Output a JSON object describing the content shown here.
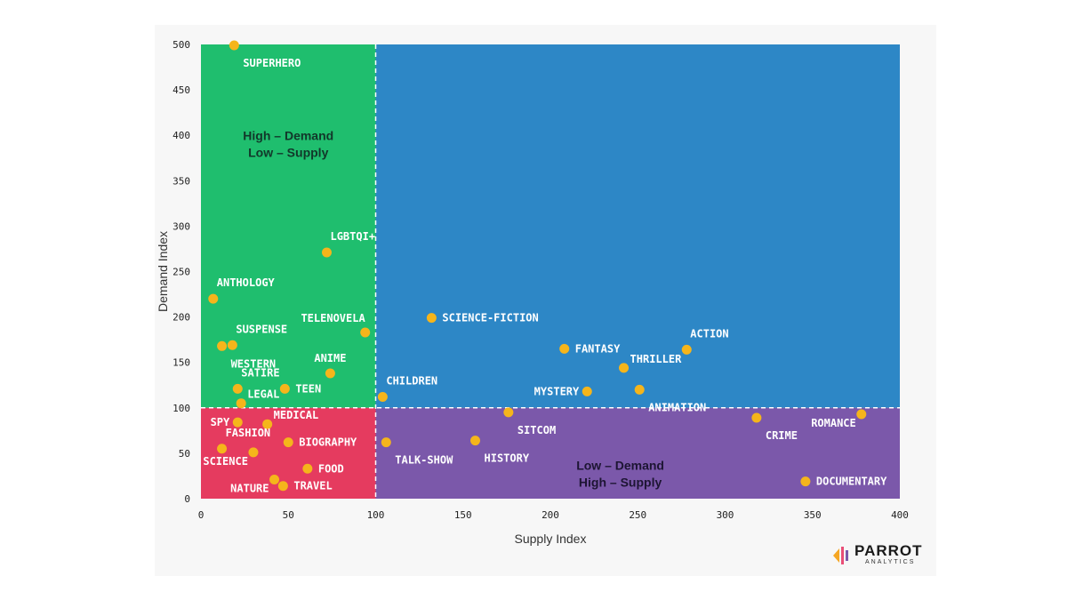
{
  "chart_data": {
    "type": "scatter",
    "xlabel": "Supply Index",
    "ylabel": "Demand Index",
    "xlim": [
      0,
      400
    ],
    "ylim": [
      0,
      500
    ],
    "xticks": [
      "0",
      "50",
      "100",
      "150",
      "200",
      "250",
      "300",
      "350",
      "400"
    ],
    "yticks": [
      "0",
      "50",
      "100",
      "150",
      "200",
      "250",
      "300",
      "350",
      "400",
      "450",
      "500"
    ],
    "threshold_x": 100,
    "threshold_y": 100,
    "zones": [
      {
        "name": "high-demand-low-supply",
        "label_lines": [
          "High – Demand",
          "Low – Supply"
        ],
        "color": "#1fbe6e",
        "text_color": "#12372a"
      },
      {
        "name": "high-demand-high-supply",
        "label_lines": [],
        "color": "#2d87c6",
        "text_color": "#ffffff"
      },
      {
        "name": "low-demand-low-supply",
        "label_lines": [],
        "color": "#e53b5f",
        "text_color": "#ffffff"
      },
      {
        "name": "low-demand-high-supply",
        "label_lines": [
          "Low – Demand",
          "High – Supply"
        ],
        "color": "#7b58aa",
        "text_color": "#1d1533"
      }
    ],
    "point_color": "#f5b51b",
    "points": [
      {
        "label": "SUPERHERO",
        "x": 19,
        "y": 499,
        "anchor": "below-right"
      },
      {
        "label": "LGBTQI+",
        "x": 72,
        "y": 271,
        "anchor": "above-right"
      },
      {
        "label": "ANTHOLOGY",
        "x": 7,
        "y": 220,
        "anchor": "above-right"
      },
      {
        "label": "TELENOVELA",
        "x": 94,
        "y": 183,
        "anchor": "above-left"
      },
      {
        "label": "SUSPENSE",
        "x": 18,
        "y": 169,
        "anchor": "above-right"
      },
      {
        "label": "WESTERN",
        "x": 12,
        "y": 168,
        "anchor": "below-right"
      },
      {
        "label": "ANIME",
        "x": 74,
        "y": 138,
        "anchor": "above"
      },
      {
        "label": "SATIRE",
        "x": 21,
        "y": 121,
        "anchor": "above-right"
      },
      {
        "label": "TEEN",
        "x": 48,
        "y": 121,
        "anchor": "right"
      },
      {
        "label": "LEGAL",
        "x": 23,
        "y": 105,
        "anchor": "upper-right"
      },
      {
        "label": "CHILDREN",
        "x": 104,
        "y": 112,
        "anchor": "above-right"
      },
      {
        "label": "SCIENCE-FICTION",
        "x": 132,
        "y": 199,
        "anchor": "right"
      },
      {
        "label": "FANTASY",
        "x": 208,
        "y": 165,
        "anchor": "right"
      },
      {
        "label": "ACTION",
        "x": 278,
        "y": 164,
        "anchor": "above-right"
      },
      {
        "label": "THRILLER",
        "x": 242,
        "y": 144,
        "anchor": "upper-right"
      },
      {
        "label": "MYSTERY",
        "x": 221,
        "y": 118,
        "anchor": "left"
      },
      {
        "label": "ANIMATION",
        "x": 251,
        "y": 120,
        "anchor": "below-right"
      },
      {
        "label": "SPY",
        "x": 21,
        "y": 84,
        "anchor": "left"
      },
      {
        "label": "MEDICAL",
        "x": 38,
        "y": 82,
        "anchor": "upper-right"
      },
      {
        "label": "FASHION",
        "x": 12,
        "y": 55,
        "anchor": "above-right"
      },
      {
        "label": "BIOGRAPHY",
        "x": 50,
        "y": 62,
        "anchor": "right"
      },
      {
        "label": "SCIENCE",
        "x": 30,
        "y": 51,
        "anchor": "below-left"
      },
      {
        "label": "FOOD",
        "x": 61,
        "y": 33,
        "anchor": "right"
      },
      {
        "label": "NATURE",
        "x": 42,
        "y": 21,
        "anchor": "below-left"
      },
      {
        "label": "TRAVEL",
        "x": 47,
        "y": 14,
        "anchor": "right"
      },
      {
        "label": "TALK-SHOW",
        "x": 106,
        "y": 62,
        "anchor": "below-right"
      },
      {
        "label": "HISTORY",
        "x": 157,
        "y": 64,
        "anchor": "below-right"
      },
      {
        "label": "SITCOM",
        "x": 176,
        "y": 95,
        "anchor": "below-right"
      },
      {
        "label": "CRIME",
        "x": 318,
        "y": 89,
        "anchor": "below-right"
      },
      {
        "label": "ROMANCE",
        "x": 378,
        "y": 93,
        "anchor": "below-left"
      },
      {
        "label": "DOCUMENTARY",
        "x": 346,
        "y": 19,
        "anchor": "right"
      }
    ]
  },
  "logo": {
    "name": "PARROT",
    "tagline": "ANALYTICS",
    "colors": [
      "#f5a623",
      "#e94e77",
      "#7b58aa"
    ]
  }
}
